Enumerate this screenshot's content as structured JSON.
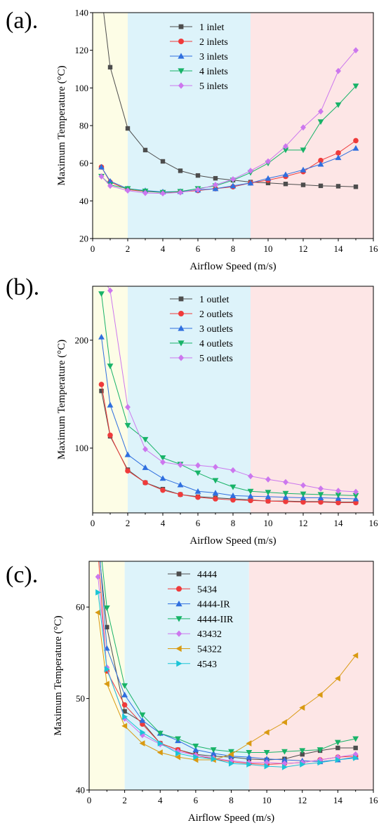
{
  "chart_data": [
    {
      "panel_label": "(a).",
      "type": "line",
      "xlabel": "Airflow Speed (m/s)",
      "ylabel": "Maximum Temperature (°C)",
      "xlim": [
        0,
        16
      ],
      "ylim": [
        20,
        140
      ],
      "xticks": [
        0,
        2,
        4,
        6,
        8,
        10,
        12,
        14,
        16
      ],
      "yticks": [
        20,
        40,
        60,
        80,
        100,
        120,
        140
      ],
      "legend_position": "top-center",
      "regions": [
        {
          "from": 0,
          "to": 2,
          "color": "#fdfde6"
        },
        {
          "from": 2,
          "to": 9,
          "color": "#ddf3fa"
        },
        {
          "from": 9,
          "to": 16,
          "color": "#fde6e6"
        }
      ],
      "x": [
        0.5,
        1,
        2,
        3,
        4,
        5,
        6,
        7,
        8,
        9,
        10,
        11,
        12,
        13,
        14,
        15
      ],
      "series": [
        {
          "name": "1 inlet",
          "color": "#4d4d4d",
          "marker": "square",
          "values": [
            150,
            111,
            78.5,
            67,
            61,
            56,
            53.5,
            52,
            51,
            50,
            49.5,
            49,
            48.5,
            48,
            47.8,
            47.5
          ]
        },
        {
          "name": "2 inlets",
          "color": "#ef3b3b",
          "marker": "circle",
          "values": [
            58,
            50,
            46,
            45,
            44.5,
            44.8,
            45.5,
            46.5,
            47.5,
            49.5,
            51,
            53,
            55.5,
            61.5,
            65.5,
            72
          ]
        },
        {
          "name": "3 inlets",
          "color": "#2f6fdf",
          "marker": "triangle-up",
          "values": [
            58,
            50.5,
            46.5,
            45.5,
            44.8,
            45,
            45.8,
            46.5,
            48,
            49.5,
            52,
            54,
            56.5,
            59.5,
            63,
            68
          ]
        },
        {
          "name": "4 inlets",
          "color": "#18b368",
          "marker": "triangle-down",
          "values": [
            53,
            48.5,
            46.5,
            45.2,
            44.5,
            45,
            46.5,
            48,
            51,
            55,
            60,
            67,
            67,
            82,
            91,
            101
          ]
        },
        {
          "name": "5 inlets",
          "color": "#cc77ee",
          "marker": "diamond",
          "values": [
            53,
            48,
            45.5,
            44.2,
            44,
            44.5,
            46,
            48.5,
            51.5,
            56,
            61,
            69,
            79,
            87.5,
            109,
            120
          ]
        }
      ]
    },
    {
      "panel_label": "(b).",
      "type": "line",
      "xlabel": "Airflow Speed (m/s)",
      "ylabel": "Maximum Temperature (°C)",
      "xlim": [
        0,
        16
      ],
      "ylim": [
        40,
        250
      ],
      "xticks": [
        0,
        2,
        4,
        6,
        8,
        10,
        12,
        14,
        16
      ],
      "yticks": [
        100,
        200
      ],
      "legend_position": "top-center",
      "regions": [
        {
          "from": 0,
          "to": 2,
          "color": "#fdfde6"
        },
        {
          "from": 2,
          "to": 9,
          "color": "#ddf3fa"
        },
        {
          "from": 9,
          "to": 16,
          "color": "#fde6e6"
        }
      ],
      "x": [
        0.5,
        1,
        2,
        3,
        4,
        5,
        6,
        7,
        8,
        9,
        10,
        11,
        12,
        13,
        14,
        15
      ],
      "series": [
        {
          "name": "1 outlet",
          "color": "#4d4d4d",
          "marker": "square",
          "values": [
            153,
            111,
            80,
            68,
            62,
            57,
            55,
            54,
            53,
            52,
            51,
            51,
            50.5,
            50.5,
            50,
            50
          ]
        },
        {
          "name": "2 outlets",
          "color": "#ef3b3b",
          "marker": "circle",
          "values": [
            159,
            112,
            79,
            68,
            61,
            57,
            54.5,
            53,
            52,
            51.5,
            51,
            50.5,
            50,
            50,
            49.5,
            49.5
          ]
        },
        {
          "name": "3 outlets",
          "color": "#2f6fdf",
          "marker": "triangle-up",
          "values": [
            203,
            140,
            94,
            82,
            72,
            66,
            60,
            58.5,
            56,
            55.5,
            55,
            54.5,
            54,
            54,
            53.5,
            53
          ]
        },
        {
          "name": "4 outlets",
          "color": "#18b368",
          "marker": "triangle-down",
          "values": [
            243,
            176,
            121,
            108,
            91,
            85,
            77,
            70,
            64,
            60,
            59,
            58,
            57.5,
            57,
            56.5,
            56
          ]
        },
        {
          "name": "5 outlets",
          "color": "#cc77ee",
          "marker": "diamond",
          "values": [
            260,
            246,
            138,
            99,
            87,
            84.5,
            84,
            82.5,
            79.5,
            74,
            71,
            68.5,
            65.5,
            62.5,
            60.5,
            59.5
          ]
        }
      ]
    },
    {
      "panel_label": "(c).",
      "type": "line",
      "xlabel": "Airflow Speed (m/s)",
      "ylabel": "Maximum Temperature (°C)",
      "xlim": [
        0,
        16
      ],
      "ylim": [
        40,
        65
      ],
      "xticks": [
        0,
        2,
        4,
        6,
        8,
        10,
        12,
        14,
        16
      ],
      "yticks": [
        40,
        50,
        60
      ],
      "legend_position": "top-center",
      "regions": [
        {
          "from": 0,
          "to": 2,
          "color": "#fdfde6"
        },
        {
          "from": 2,
          "to": 9,
          "color": "#ddf3fa"
        },
        {
          "from": 9,
          "to": 16,
          "color": "#fde6e6"
        }
      ],
      "x": [
        0.5,
        1,
        2,
        3,
        4,
        5,
        6,
        7,
        8,
        9,
        10,
        11,
        12,
        13,
        14,
        15
      ],
      "series": [
        {
          "name": "4444",
          "color": "#4d4d4d",
          "marker": "square",
          "values": [
            67,
            57.8,
            48.6,
            47.4,
            45.1,
            44.4,
            43.9,
            43.7,
            43.6,
            43.4,
            43.3,
            43.4,
            43.9,
            44.3,
            44.6,
            44.6
          ]
        },
        {
          "name": "5434",
          "color": "#ef3b3b",
          "marker": "circle",
          "values": [
            66,
            53,
            49.3,
            47.2,
            45.1,
            44.4,
            43.8,
            43.4,
            43.1,
            42.9,
            42.8,
            42.9,
            43,
            43.3,
            43.6,
            43.7
          ]
        },
        {
          "name": "4444-IR",
          "color": "#2f6fdf",
          "marker": "triangle-up",
          "values": [
            68,
            55.5,
            50.4,
            47.6,
            46.2,
            45.4,
            44.4,
            44,
            43.7,
            43.6,
            43.4,
            43.3,
            43.2,
            43.1,
            43.3,
            43.6
          ]
        },
        {
          "name": "4444-IIR",
          "color": "#18b368",
          "marker": "triangle-down",
          "values": [
            69,
            59.9,
            51.4,
            48.2,
            46.2,
            45.6,
            44.8,
            44.4,
            44.2,
            44.1,
            44.1,
            44.2,
            44.3,
            44.4,
            45.2,
            45.6
          ]
        },
        {
          "name": "43432",
          "color": "#cc77ee",
          "marker": "diamond",
          "values": [
            63.3,
            53.4,
            47.8,
            46,
            45,
            44.2,
            43.8,
            43.5,
            43.2,
            43,
            43,
            42.9,
            43,
            43.3,
            43.6,
            43.9
          ]
        },
        {
          "name": "54322",
          "color": "#d99a12",
          "marker": "triangle-left",
          "values": [
            59.4,
            51.6,
            47,
            45.1,
            44.1,
            43.6,
            43.3,
            43.3,
            43.9,
            45.1,
            46.3,
            47.4,
            49,
            50.4,
            52.2,
            54.7
          ]
        },
        {
          "name": "4543",
          "color": "#1cc4d6",
          "marker": "triangle-right",
          "values": [
            61.6,
            53.2,
            48,
            46.3,
            45.1,
            44,
            43.6,
            43.4,
            42.9,
            42.8,
            42.6,
            42.5,
            42.8,
            43,
            43.3,
            43.5
          ]
        }
      ]
    }
  ]
}
